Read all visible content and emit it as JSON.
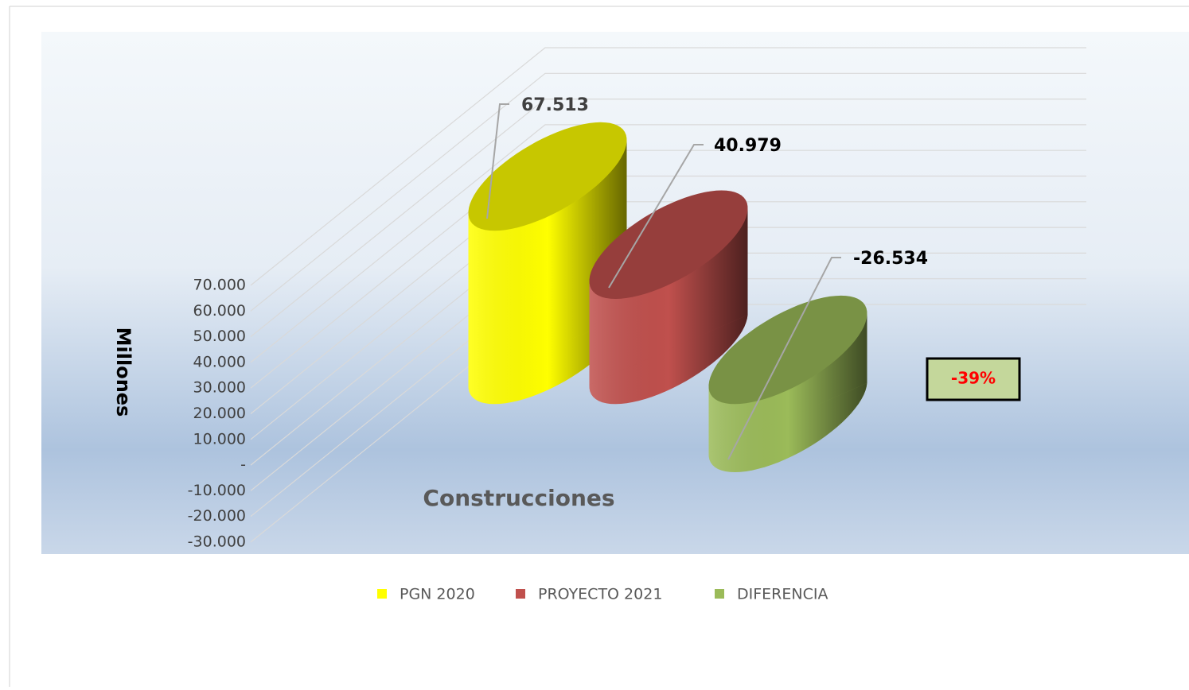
{
  "chart_data": {
    "type": "bar3d",
    "categories": [
      "Construcciones"
    ],
    "y_axis_label": "Millones",
    "series": [
      {
        "name": "PGN 2020",
        "color": "#ffff00",
        "values": [
          67513
        ],
        "value_labels": [
          "67.513"
        ]
      },
      {
        "name": "PROYECTO 2021",
        "color": "#c0504d",
        "values": [
          40979
        ],
        "value_labels": [
          "40.979"
        ]
      },
      {
        "name": "DIFERENCIA",
        "color": "#9bbb59",
        "values": [
          -26534
        ],
        "value_labels": [
          "-26.534"
        ]
      }
    ],
    "annotation": "-39%",
    "ylim": [
      -30000,
      70000
    ],
    "yticks": [
      {
        "value": -30000,
        "label": "-30.000"
      },
      {
        "value": -20000,
        "label": "-20.000"
      },
      {
        "value": -10000,
        "label": "-10.000"
      },
      {
        "value": 0,
        "label": "-"
      },
      {
        "value": 10000,
        "label": "10.000"
      },
      {
        "value": 20000,
        "label": "20.000"
      },
      {
        "value": 30000,
        "label": "30.000"
      },
      {
        "value": 40000,
        "label": "40.000"
      },
      {
        "value": 50000,
        "label": "50.000"
      },
      {
        "value": 60000,
        "label": "60.000"
      },
      {
        "value": 70000,
        "label": "70.000"
      }
    ],
    "grid": true,
    "legend": "bottom"
  }
}
